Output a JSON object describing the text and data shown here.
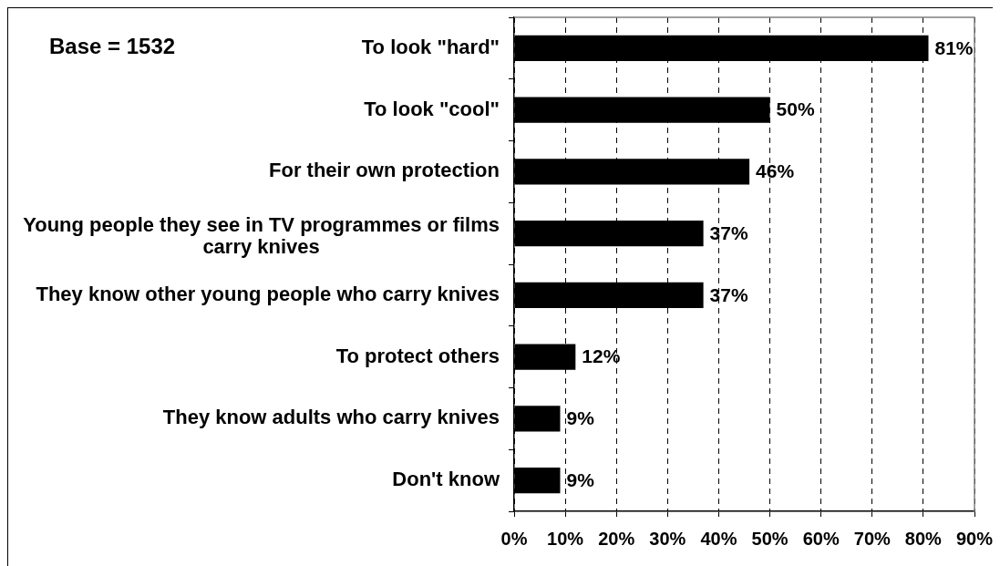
{
  "chart_data": {
    "type": "bar",
    "orientation": "horizontal",
    "categories": [
      "To look \"hard\"",
      "To look \"cool\"",
      "For their own protection",
      "Young people they see in TV programmes or films carry knives",
      "They know other young people who carry knives",
      "To protect others",
      "They know adults who carry knives",
      "Don't know"
    ],
    "values": [
      81,
      50,
      46,
      37,
      37,
      12,
      9,
      9
    ],
    "value_labels": [
      "81%",
      "50%",
      "46%",
      "37%",
      "37%",
      "12%",
      "9%",
      "9%"
    ],
    "color": "#000000",
    "xlim": [
      0,
      90
    ],
    "xticks": [
      {
        "value": 0,
        "label": "0%"
      },
      {
        "value": 10,
        "label": "10%"
      },
      {
        "value": 20,
        "label": "20%"
      },
      {
        "value": 30,
        "label": "30%"
      },
      {
        "value": 40,
        "label": "40%"
      },
      {
        "value": 50,
        "label": "50%"
      },
      {
        "value": 60,
        "label": "60%"
      },
      {
        "value": 70,
        "label": "70%"
      },
      {
        "value": 80,
        "label": "80%"
      },
      {
        "value": 90,
        "label": "90%"
      }
    ],
    "grid": "x",
    "legend": false,
    "annotations": [
      "Base = 1532"
    ]
  }
}
